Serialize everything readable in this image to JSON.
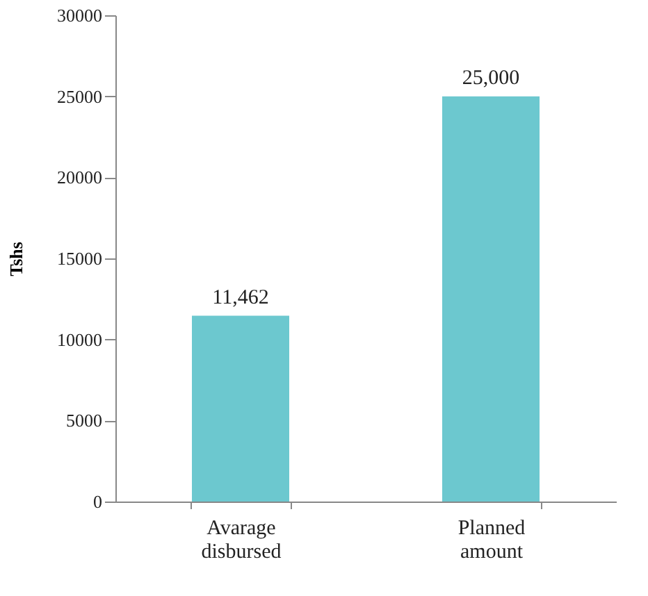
{
  "chart_data": {
    "type": "bar",
    "ylabel": "Tshs",
    "categories": [
      "Avarage disbursed",
      "Planned amount"
    ],
    "values": [
      11462,
      25000
    ],
    "value_labels": [
      "11,462",
      "25,000"
    ],
    "color": "#6cc8cf",
    "ylim": [
      0,
      30000
    ],
    "yticks": [
      0,
      5000,
      10000,
      15000,
      20000,
      25000,
      30000
    ],
    "grid": false
  }
}
